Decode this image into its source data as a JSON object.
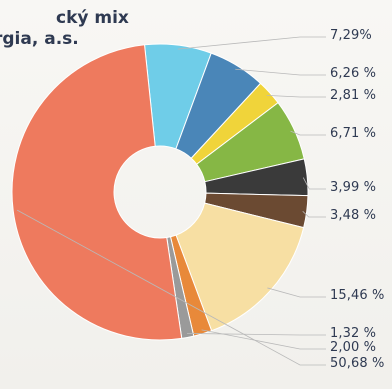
{
  "title_lines": [
    "cký mix",
    "rgia, a.s."
  ],
  "chart_data": {
    "type": "pie",
    "title": "",
    "slices": [
      {
        "value": 7.29,
        "label": "7,29%",
        "color": "#6fcde8"
      },
      {
        "value": 6.26,
        "label": "6,26 %",
        "color": "#4a86b8"
      },
      {
        "value": 2.81,
        "label": "2,81 %",
        "color": "#f0d43a"
      },
      {
        "value": 6.71,
        "label": "6,71 %",
        "color": "#86b745"
      },
      {
        "value": 3.99,
        "label": "3,99 %",
        "color": "#3a3a3a"
      },
      {
        "value": 3.48,
        "label": "3,48 %",
        "color": "#6b4a32"
      },
      {
        "value": 15.46,
        "label": "15,46 %",
        "color": "#f7dfa3"
      },
      {
        "value": 2.0,
        "label": "2,00 %",
        "color": "#e8893a"
      },
      {
        "value": 1.32,
        "label": "1,32 %",
        "color": "#9a9a9a"
      },
      {
        "value": 50.68,
        "label": "50,68 %",
        "color": "#ee7a5e"
      }
    ],
    "donut": true,
    "legend": "right"
  }
}
